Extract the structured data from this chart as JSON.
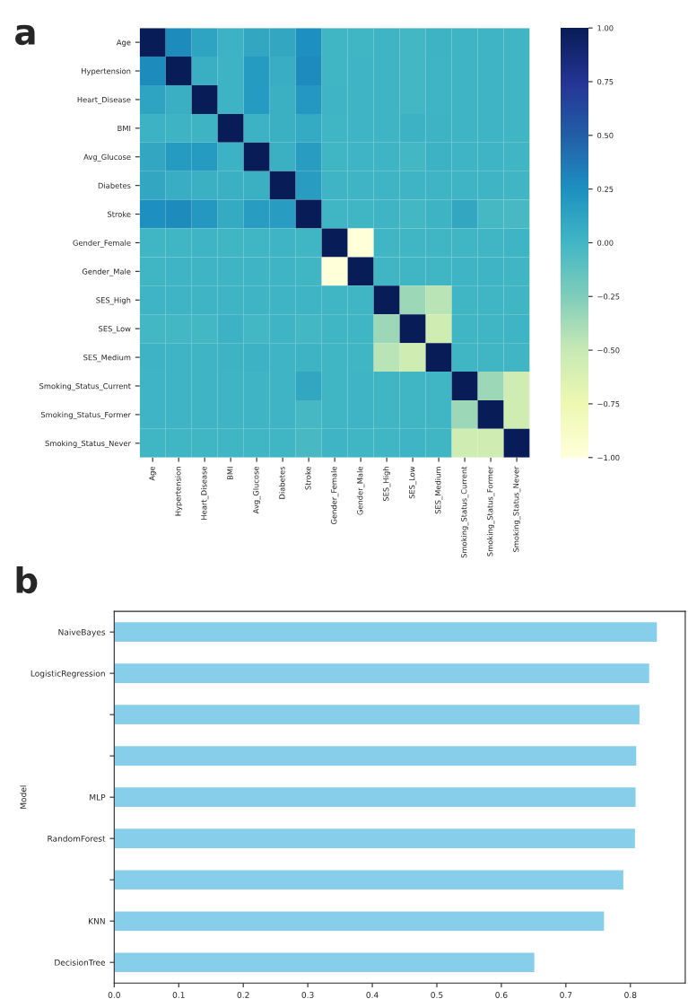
{
  "chart_data": [
    {
      "type": "heatmap",
      "title": "a",
      "categories": [
        "Age",
        "Hypertension",
        "Heart_Disease",
        "BMI",
        "Avg_Glucose",
        "Diabetes",
        "Stroke",
        "Gender_Female",
        "Gender_Male",
        "SES_High",
        "SES_Low",
        "SES_Medium",
        "Smoking_Status_Current",
        "Smoking_Status_Former",
        "Smoking_Status_Never"
      ],
      "y_categories": [
        "Age",
        "Hypertension",
        "Heart_Disease",
        "BMI",
        "Avg_Glucose",
        "Diabetes",
        "Stroke",
        "Gender_Female",
        "Gender_Male",
        "SES_High",
        "SES_Low",
        "SES_Medium",
        "Smoking_Status_Current",
        "Smoking_Status_Former",
        "Smoking_Status_Never"
      ],
      "cells": [
        [
          1.0,
          0.28,
          0.12,
          0.03,
          0.1,
          0.1,
          0.25,
          0.0,
          0.0,
          0.01,
          -0.01,
          0.02,
          0.01,
          0.01,
          0.0
        ],
        [
          0.28,
          1.0,
          0.05,
          0.02,
          0.18,
          0.06,
          0.28,
          0.0,
          0.01,
          0.01,
          -0.01,
          0.01,
          0.01,
          0.01,
          0.0
        ],
        [
          0.12,
          0.05,
          1.0,
          0.02,
          0.18,
          0.04,
          0.2,
          0.01,
          0.01,
          0.01,
          -0.01,
          0.01,
          0.01,
          0.01,
          0.0
        ],
        [
          0.03,
          0.02,
          0.02,
          1.0,
          0.03,
          0.04,
          0.08,
          0.0,
          0.01,
          0.01,
          0.03,
          0.02,
          0.01,
          0.01,
          0.0
        ],
        [
          0.1,
          0.18,
          0.18,
          0.03,
          1.0,
          0.04,
          0.17,
          0.0,
          0.01,
          0.01,
          -0.01,
          0.03,
          0.01,
          0.01,
          0.0
        ],
        [
          0.1,
          0.06,
          0.04,
          0.04,
          0.04,
          1.0,
          0.17,
          0.01,
          0.01,
          0.01,
          0.01,
          0.01,
          0.01,
          0.01,
          0.0
        ],
        [
          0.25,
          0.28,
          0.2,
          0.08,
          0.17,
          0.17,
          1.0,
          0.0,
          0.0,
          0.01,
          -0.01,
          0.02,
          0.1,
          -0.02,
          -0.03
        ],
        [
          0.0,
          0.0,
          0.01,
          0.0,
          0.0,
          0.01,
          0.0,
          1.0,
          -1.0,
          0.0,
          0.0,
          0.0,
          0.0,
          0.0,
          0.01
        ],
        [
          0.0,
          0.01,
          0.01,
          0.01,
          0.01,
          0.01,
          0.0,
          -1.0,
          1.0,
          0.0,
          0.0,
          0.0,
          0.01,
          0.01,
          0.0
        ],
        [
          0.01,
          0.01,
          0.01,
          0.01,
          0.01,
          0.01,
          0.01,
          0.0,
          0.0,
          1.0,
          -0.35,
          -0.45,
          0.0,
          0.0,
          0.0
        ],
        [
          -0.01,
          -0.01,
          -0.01,
          0.03,
          -0.01,
          0.01,
          -0.01,
          0.0,
          0.0,
          -0.35,
          1.0,
          -0.55,
          0.0,
          0.0,
          0.01
        ],
        [
          0.02,
          0.01,
          0.01,
          0.02,
          0.03,
          0.01,
          0.02,
          0.0,
          0.0,
          -0.45,
          -0.55,
          1.0,
          0.0,
          0.0,
          0.0
        ],
        [
          0.01,
          0.01,
          0.01,
          0.01,
          0.01,
          0.01,
          0.1,
          0.0,
          0.01,
          0.0,
          0.0,
          0.0,
          1.0,
          -0.35,
          -0.55
        ],
        [
          0.01,
          0.01,
          0.01,
          0.01,
          0.01,
          0.01,
          -0.02,
          0.0,
          0.01,
          0.0,
          0.0,
          0.0,
          -0.35,
          1.0,
          -0.55
        ],
        [
          0.0,
          0.0,
          0.0,
          0.0,
          0.0,
          0.0,
          -0.03,
          0.01,
          0.0,
          0.0,
          0.01,
          0.0,
          -0.55,
          -0.55,
          1.0
        ]
      ],
      "clim": [
        -1.0,
        1.0
      ],
      "cticks": [
        {
          "value": -1.0,
          "label": "−1.00"
        },
        {
          "value": -0.75,
          "label": "−0.75"
        },
        {
          "value": -0.5,
          "label": "−0.50"
        },
        {
          "value": -0.25,
          "label": "−0.25"
        },
        {
          "value": 0.0,
          "label": "0.00"
        },
        {
          "value": 0.25,
          "label": "0.25"
        },
        {
          "value": 0.5,
          "label": "0.50"
        },
        {
          "value": 0.75,
          "label": "0.75"
        },
        {
          "value": 1.0,
          "label": "1.00"
        }
      ]
    },
    {
      "type": "bar",
      "title": "b",
      "orientation": "horizontal",
      "ylabel": "Model",
      "categories": [
        "NaiveBayes",
        "LogisticRegression",
        null,
        null,
        "MLP",
        "RandomForest",
        null,
        "KNN",
        "DecisionTree"
      ],
      "values": [
        0.842,
        0.83,
        0.815,
        0.81,
        0.809,
        0.808,
        0.79,
        0.76,
        0.652
      ],
      "color": "#87ceeb",
      "xlim": [
        0.0,
        0.885
      ],
      "xticks": [
        {
          "value": 0.0,
          "label": "0.0"
        },
        {
          "value": 0.1,
          "label": "0.1"
        },
        {
          "value": 0.2,
          "label": "0.2"
        },
        {
          "value": 0.3,
          "label": "0.3"
        },
        {
          "value": 0.4,
          "label": "0.4"
        },
        {
          "value": 0.5,
          "label": "0.5"
        },
        {
          "value": 0.6,
          "label": "0.6"
        },
        {
          "value": 0.7,
          "label": "0.7"
        },
        {
          "value": 0.8,
          "label": "0.8"
        }
      ],
      "grid": false
    }
  ]
}
